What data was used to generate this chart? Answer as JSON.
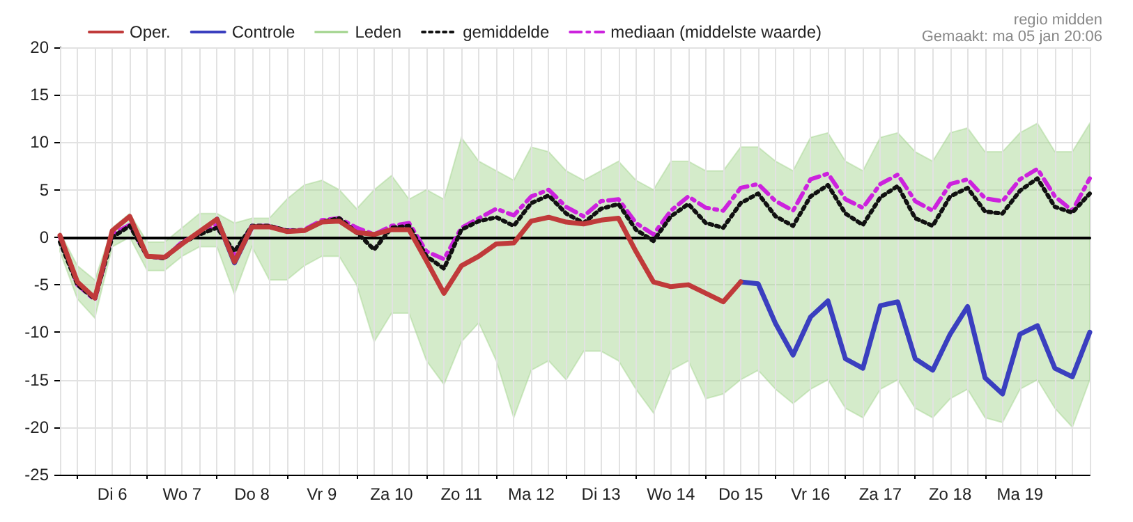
{
  "chart_data": {
    "type": "line",
    "legend": "top left",
    "grid": true,
    "marker": "none",
    "annotations": [
      "regio midden",
      "Gemaakt: ma 05 jan 20:06"
    ],
    "categories": [
      null,
      null,
      null,
      "Di 6",
      null,
      null,
      null,
      "Wo 7",
      null,
      null,
      null,
      "Do 8",
      null,
      null,
      null,
      "Vr 9",
      null,
      null,
      null,
      "Za 10",
      null,
      null,
      null,
      "Zo 11",
      null,
      null,
      null,
      "Ma 12",
      null,
      null,
      null,
      "Di 13",
      null,
      null,
      null,
      "Wo 14",
      null,
      null,
      null,
      "Do 15",
      null,
      null,
      null,
      "Vr 16",
      null,
      null,
      null,
      "Za 17",
      null,
      null,
      null,
      "Zo 18",
      null,
      null,
      null,
      "Ma 19",
      null,
      null,
      null,
      null
    ],
    "ylim": [
      -25,
      20
    ],
    "yticks": [
      -25,
      -20,
      -15,
      -10,
      -5,
      0,
      5,
      10,
      15,
      20
    ],
    "series": [
      {
        "name": "Oper.",
        "color": "#c03a3a",
        "values": [
          0.2,
          -4.7,
          -6.4,
          0.7,
          2.2,
          -2,
          -2.1,
          -0.7,
          0.6,
          1.9,
          -2.6,
          1.1,
          1.1,
          0.6,
          0.7,
          1.6,
          1.7,
          0.5,
          0.3,
          0.8,
          0.8,
          -2.5,
          -5.9,
          -3,
          -2,
          -0.7,
          -0.6,
          1.7,
          2.1,
          1.6,
          1.4,
          1.8,
          2,
          -1.5,
          -4.7,
          -5.2,
          -5,
          -5.9,
          -6.8,
          -4.7,
          null,
          null,
          null,
          null,
          null,
          null,
          null,
          null,
          null,
          null,
          null,
          null,
          null,
          null,
          null,
          null,
          null,
          null,
          null,
          null
        ]
      },
      {
        "name": "Controle",
        "color": "#3a3fbf",
        "values": [
          null,
          null,
          null,
          null,
          null,
          null,
          null,
          null,
          null,
          1.9,
          -2.7,
          1.1,
          null,
          null,
          null,
          null,
          null,
          null,
          null,
          null,
          null,
          null,
          null,
          null,
          null,
          null,
          null,
          null,
          null,
          null,
          null,
          null,
          null,
          null,
          null,
          null,
          null,
          null,
          null,
          -4.7,
          -4.9,
          -9.1,
          -12.4,
          -8.4,
          -6.7,
          -12.8,
          -13.8,
          -7.2,
          -6.8,
          -12.8,
          -14,
          -10.2,
          -7.3,
          -14.8,
          -16.5,
          -10.2,
          -9.3,
          -13.8,
          -14.7,
          -10
        ]
      },
      {
        "name": "Leden",
        "type": "area",
        "color": "#9fd38a",
        "values": [
          null,
          null,
          null,
          null,
          null,
          null,
          null,
          null,
          null,
          null,
          null,
          null,
          null,
          null,
          null,
          null,
          null,
          null,
          null,
          null,
          null,
          null,
          null,
          null,
          null,
          null,
          null,
          null,
          null,
          null,
          null,
          null,
          null,
          null,
          null,
          null,
          null,
          null,
          null,
          null,
          null,
          null,
          null,
          null,
          null,
          null,
          null,
          null,
          null,
          null,
          null,
          null,
          null,
          null,
          null,
          null,
          null,
          null,
          null,
          null
        ],
        "lower": [
          -1.5,
          -6.5,
          -8.5,
          -1,
          0,
          -3.5,
          -3.5,
          -2,
          -1,
          -1,
          -6,
          -1,
          -4.5,
          -4.5,
          -3,
          -2,
          -2,
          -5,
          -11,
          -8,
          -8,
          -13,
          -15.5,
          -11,
          -9,
          -13,
          -19,
          -14,
          -13,
          -15,
          -12,
          -12,
          -13,
          -16,
          -18.5,
          -14,
          -13,
          -17,
          -16.5,
          -15,
          -14,
          -16,
          -17.5,
          -16,
          -15,
          -18,
          -19,
          -16,
          -15,
          -18,
          -19,
          -17,
          -16,
          -19,
          -19.5,
          -16,
          -15,
          -18,
          -20,
          -15
        ],
        "upper": [
          0.5,
          -3,
          -4.5,
          1,
          2.5,
          -0.5,
          -0.5,
          1,
          2.5,
          2.5,
          1.5,
          2,
          2,
          4,
          5.5,
          6,
          5,
          3,
          5,
          6.5,
          4,
          5,
          4,
          10.5,
          8,
          7,
          6,
          9.5,
          9,
          7,
          6,
          7,
          8,
          6,
          5,
          8,
          8,
          7,
          7,
          9.5,
          9.5,
          8,
          7,
          10.5,
          11,
          8,
          7,
          10.5,
          11,
          9,
          8,
          11,
          11.5,
          9,
          9,
          11,
          12,
          9,
          9,
          12
        ]
      },
      {
        "name": "gemiddelde",
        "color": "#111111",
        "line_style": "dotted",
        "values": [
          -0.5,
          -5,
          -6.5,
          0,
          1.2,
          -2,
          -2.2,
          -0.6,
          0.3,
          1,
          -1.5,
          1.2,
          1.2,
          0.7,
          0.7,
          1.6,
          2,
          0.5,
          -1.3,
          1,
          1.2,
          -2,
          -3.3,
          0.8,
          1.7,
          2.1,
          1.2,
          3.6,
          4.4,
          2.5,
          1.5,
          3,
          3.5,
          0.8,
          -0.4,
          2.2,
          3.5,
          1.5,
          1,
          3.6,
          4.6,
          2.2,
          1.2,
          4.3,
          5.5,
          2.5,
          1.3,
          4.2,
          5.4,
          2,
          1.2,
          4.3,
          5.2,
          2.7,
          2.5,
          4.9,
          6.2,
          3.2,
          2.6,
          4.6
        ]
      },
      {
        "name": "mediaan (middelste waarde)",
        "color": "#cc22dd",
        "line_style": "dashed",
        "values": [
          0,
          -5,
          -6.6,
          0.3,
          1.3,
          -2,
          -2.2,
          -0.5,
          0.4,
          1.3,
          -1.8,
          1.2,
          1.2,
          0.7,
          0.8,
          1.8,
          2,
          1,
          0.3,
          1.2,
          1.5,
          -1.5,
          -2.3,
          1,
          2,
          3,
          2.3,
          4.3,
          5,
          3.2,
          2.2,
          3.8,
          4,
          1.5,
          0.3,
          2.8,
          4.3,
          3.1,
          2.8,
          5.2,
          5.6,
          3.8,
          2.8,
          6.1,
          6.7,
          4,
          3.1,
          5.6,
          6.6,
          3.8,
          2.8,
          5.6,
          6.1,
          4.1,
          3.8,
          6.1,
          7.2,
          4.3,
          2.8,
          6.2
        ]
      }
    ]
  }
}
